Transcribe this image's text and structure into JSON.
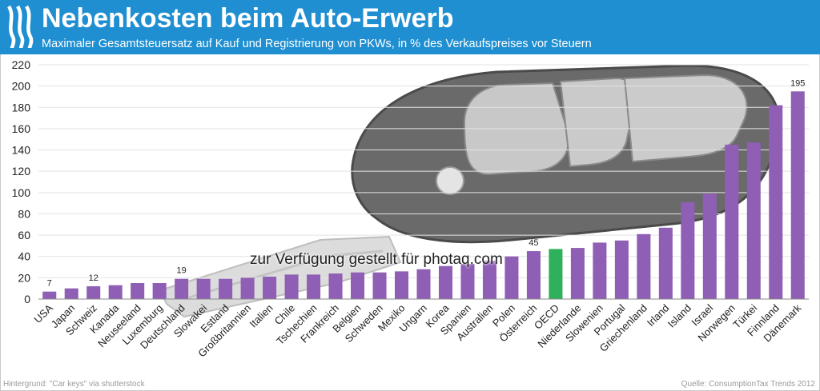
{
  "header": {
    "title": "Nebenkosten beim Auto-Erwerb",
    "subtitle": "Maximaler Gesamtsteuersatz auf Kauf und Registrierung von PKWs, in % des Verkaufspreises vor Steuern"
  },
  "footer": {
    "background_credit": "Hintergrund: \"Car keys\" via shutterstock",
    "source": "Quelle: ConsumptionTax Trends 2012"
  },
  "watermark": "zur Verfügung gestellt für photaq.com",
  "colors": {
    "header": "#1f8fd1",
    "bar": "#8e5fb4",
    "highlight": "#2fb05a"
  },
  "chart_data": {
    "type": "bar",
    "categories": [
      "USA",
      "Japan",
      "Schweiz",
      "Kanada",
      "Neuseeland",
      "Luxemburg",
      "Deutschland",
      "Slowakei",
      "Estland",
      "Großbritannien",
      "Italien",
      "Chile",
      "Tschechien",
      "Frankreich",
      "Belgien",
      "Schweden",
      "Mexiko",
      "Ungarn",
      "Korea",
      "Spanien",
      "Australien",
      "Polen",
      "Österreich",
      "OECD",
      "Niederlande",
      "Slowenien",
      "Portugal",
      "Griechenland",
      "Irland",
      "Island",
      "Israel",
      "Norwegen",
      "Türkei",
      "Finnland",
      "Dänemark"
    ],
    "values": [
      7,
      10,
      12,
      13,
      15,
      15,
      19,
      19,
      19,
      20,
      21,
      23,
      23,
      24,
      25,
      25,
      26,
      28,
      31,
      33,
      36,
      40,
      45,
      47,
      48,
      53,
      55,
      61,
      67,
      91,
      99,
      145,
      147,
      182,
      195
    ],
    "highlight": "OECD",
    "data_labels": [
      {
        "category": "USA",
        "text": "7"
      },
      {
        "category": "Schweiz",
        "text": "12"
      },
      {
        "category": "Deutschland",
        "text": "19"
      },
      {
        "category": "Österreich",
        "text": "45"
      },
      {
        "category": "Dänemark",
        "text": "195"
      }
    ],
    "ylim": [
      0,
      220
    ],
    "yticks": [
      0,
      20,
      40,
      60,
      80,
      100,
      120,
      140,
      160,
      180,
      200,
      220
    ],
    "grid": true,
    "title": "Nebenkosten beim Auto-Erwerb",
    "xlabel": "",
    "ylabel": ""
  }
}
